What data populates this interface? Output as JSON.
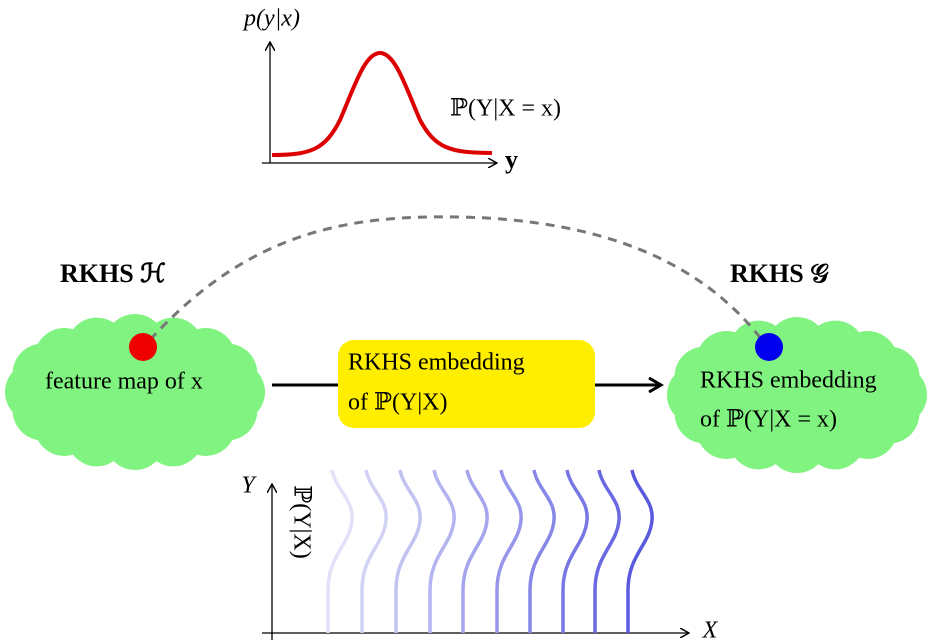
{
  "top_plot": {
    "y_label": "p(y|x)",
    "x_label": "y",
    "curve_label": "ℙ(Y|X = x)"
  },
  "left_space": {
    "title": "RKHS ℋ",
    "label": "feature map of x"
  },
  "embedding": {
    "lines": [
      "RKHS embedding",
      "of ℙ(Y|X)"
    ]
  },
  "right_space": {
    "title": "RKHS 𝒢",
    "lines": [
      "RKHS embedding",
      "of ℙ(Y|X = x)"
    ]
  },
  "bottom_plot": {
    "y_label": "Y",
    "x_label": "X",
    "curve_label": "ℙ(Y|X)"
  }
}
